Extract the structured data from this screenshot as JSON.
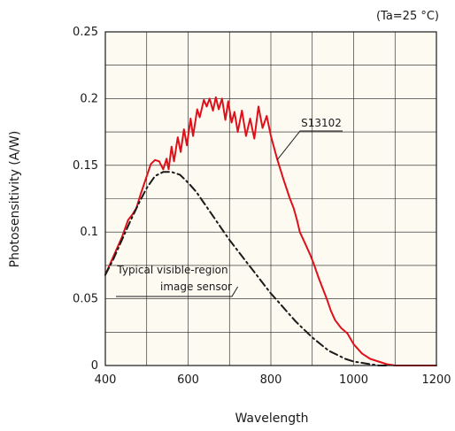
{
  "chart_data": {
    "type": "line",
    "title": "",
    "condition_note": "(Ta=25 °C)",
    "xlabel": "Wavelength",
    "ylabel": "Photosensitivity (A/W)",
    "xlim": [
      400,
      1200
    ],
    "ylim": [
      0,
      0.25
    ],
    "x_ticks": [
      400,
      600,
      800,
      1000,
      1200
    ],
    "x_tick_labels": [
      "400",
      "600",
      "800",
      "1000",
      "1200"
    ],
    "y_ticks": [
      0,
      0.05,
      0.1,
      0.15,
      0.2,
      0.25
    ],
    "y_tick_labels": [
      "0",
      "0.05",
      "0.1",
      "0.15",
      "0.2",
      "0.25"
    ],
    "x_minor_step": 100,
    "y_minor_step": 0.025,
    "grid": true,
    "plot_background": "#fdfbf1",
    "grid_color": "#1a1a1a",
    "series": [
      {
        "name": "S13102",
        "color": "#e0101a",
        "style": "solid",
        "points": [
          [
            400,
            0.068
          ],
          [
            420,
            0.082
          ],
          [
            440,
            0.096
          ],
          [
            455,
            0.109
          ],
          [
            465,
            0.113
          ],
          [
            475,
            0.118
          ],
          [
            485,
            0.128
          ],
          [
            500,
            0.142
          ],
          [
            510,
            0.151
          ],
          [
            520,
            0.154
          ],
          [
            530,
            0.153
          ],
          [
            540,
            0.147
          ],
          [
            548,
            0.155
          ],
          [
            553,
            0.147
          ],
          [
            560,
            0.164
          ],
          [
            566,
            0.153
          ],
          [
            575,
            0.171
          ],
          [
            582,
            0.16
          ],
          [
            590,
            0.177
          ],
          [
            597,
            0.165
          ],
          [
            606,
            0.185
          ],
          [
            612,
            0.172
          ],
          [
            622,
            0.192
          ],
          [
            628,
            0.186
          ],
          [
            638,
            0.199
          ],
          [
            645,
            0.194
          ],
          [
            652,
            0.2
          ],
          [
            660,
            0.191
          ],
          [
            667,
            0.201
          ],
          [
            674,
            0.192
          ],
          [
            682,
            0.2
          ],
          [
            690,
            0.184
          ],
          [
            697,
            0.198
          ],
          [
            705,
            0.182
          ],
          [
            712,
            0.19
          ],
          [
            720,
            0.175
          ],
          [
            730,
            0.191
          ],
          [
            740,
            0.172
          ],
          [
            750,
            0.185
          ],
          [
            760,
            0.17
          ],
          [
            770,
            0.194
          ],
          [
            780,
            0.178
          ],
          [
            790,
            0.187
          ],
          [
            800,
            0.172
          ],
          [
            815,
            0.155
          ],
          [
            830,
            0.14
          ],
          [
            845,
            0.126
          ],
          [
            855,
            0.118
          ],
          [
            863,
            0.109
          ],
          [
            870,
            0.1
          ],
          [
            876,
            0.096
          ],
          [
            885,
            0.09
          ],
          [
            895,
            0.083
          ],
          [
            905,
            0.075
          ],
          [
            915,
            0.066
          ],
          [
            925,
            0.058
          ],
          [
            935,
            0.05
          ],
          [
            945,
            0.041
          ],
          [
            955,
            0.034
          ],
          [
            970,
            0.028
          ],
          [
            985,
            0.024
          ],
          [
            1000,
            0.016
          ],
          [
            1020,
            0.009
          ],
          [
            1040,
            0.005
          ],
          [
            1060,
            0.003
          ],
          [
            1080,
            0.001
          ],
          [
            1100,
            0.0
          ],
          [
            1150,
            0.0
          ],
          [
            1200,
            0.0
          ]
        ]
      },
      {
        "name": "Typical visible-region image sensor",
        "color": "#1a1a1a",
        "style": "dash-dot",
        "points": [
          [
            400,
            0.068
          ],
          [
            420,
            0.08
          ],
          [
            440,
            0.094
          ],
          [
            460,
            0.108
          ],
          [
            480,
            0.121
          ],
          [
            500,
            0.133
          ],
          [
            520,
            0.142
          ],
          [
            540,
            0.145
          ],
          [
            560,
            0.145
          ],
          [
            580,
            0.143
          ],
          [
            600,
            0.137
          ],
          [
            620,
            0.13
          ],
          [
            640,
            0.121
          ],
          [
            660,
            0.112
          ],
          [
            680,
            0.103
          ],
          [
            700,
            0.094
          ],
          [
            720,
            0.086
          ],
          [
            740,
            0.078
          ],
          [
            760,
            0.07
          ],
          [
            780,
            0.062
          ],
          [
            800,
            0.054
          ],
          [
            820,
            0.047
          ],
          [
            840,
            0.04
          ],
          [
            860,
            0.033
          ],
          [
            880,
            0.027
          ],
          [
            900,
            0.021
          ],
          [
            920,
            0.016
          ],
          [
            940,
            0.011
          ],
          [
            960,
            0.008
          ],
          [
            980,
            0.005
          ],
          [
            1000,
            0.003
          ],
          [
            1020,
            0.002
          ],
          [
            1040,
            0.001
          ],
          [
            1060,
            0.0
          ],
          [
            1080,
            0.0
          ]
        ]
      }
    ],
    "annotations": [
      {
        "series_index": 0,
        "lines": [
          "S13102"
        ],
        "anchor": [
          815,
          0.154
        ]
      },
      {
        "series_index": 1,
        "lines": [
          "Typical visible-region",
          "image sensor"
        ],
        "anchor": [
          720,
          0.059
        ]
      }
    ]
  }
}
